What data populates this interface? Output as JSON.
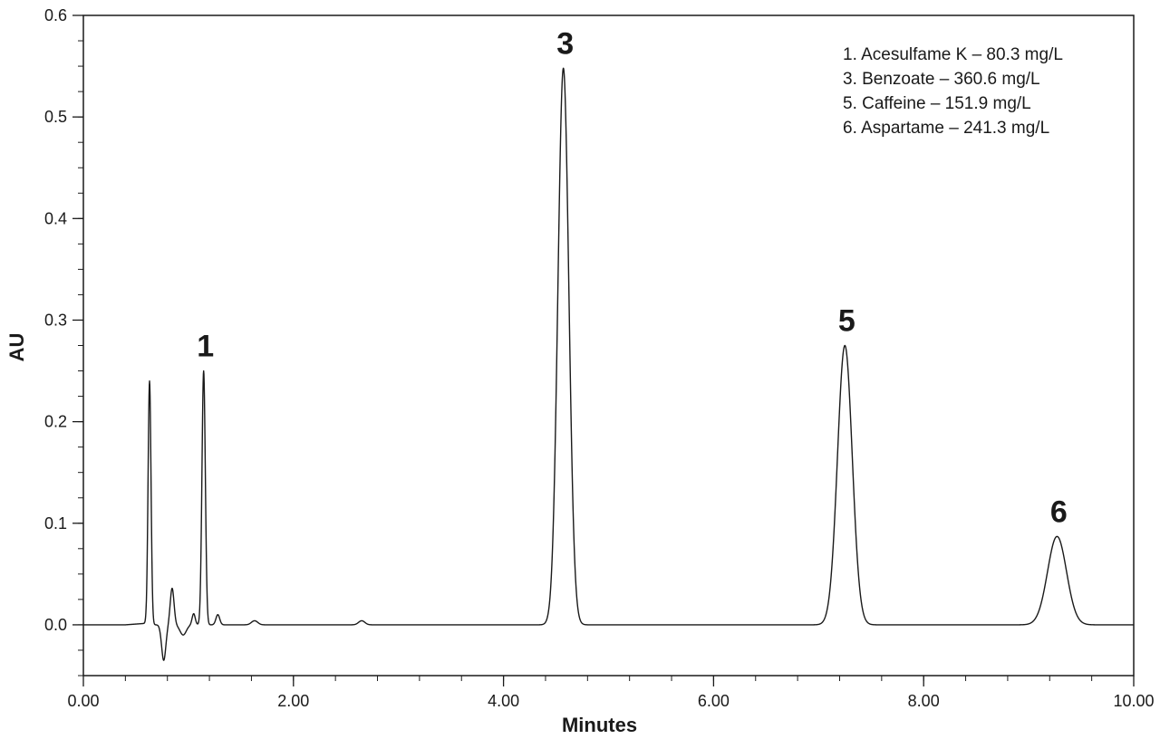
{
  "chart_data": {
    "type": "line",
    "xlabel": "Minutes",
    "ylabel": "AU",
    "xlim": [
      0.0,
      10.0
    ],
    "ylim": [
      -0.05,
      0.6
    ],
    "x_ticks": [
      0,
      2,
      4,
      6,
      8,
      10
    ],
    "x_tick_labels": [
      "0.00",
      "2.00",
      "4.00",
      "6.00",
      "8.00",
      "10.00"
    ],
    "x_minor_step": 0.4,
    "y_ticks": [
      0.0,
      0.1,
      0.2,
      0.3,
      0.4,
      0.5,
      0.6
    ],
    "y_tick_labels": [
      "0.0",
      "0.1",
      "0.2",
      "0.3",
      "0.4",
      "0.5",
      "0.6"
    ],
    "y_minor_step": 0.025,
    "grid": false,
    "line_color": "#1a1a1a",
    "peaks": [
      {
        "t": 0.63,
        "h": 0.24,
        "w": 0.014,
        "label": ""
      },
      {
        "t": 0.845,
        "h": 0.036,
        "w": 0.018,
        "label": ""
      },
      {
        "t": 1.05,
        "h": 0.011,
        "w": 0.015,
        "label": ""
      },
      {
        "t": 1.145,
        "h": 0.25,
        "w": 0.016,
        "label": "1"
      },
      {
        "t": 1.28,
        "h": 0.01,
        "w": 0.018,
        "label": ""
      },
      {
        "t": 1.63,
        "h": 0.004,
        "w": 0.03,
        "label": ""
      },
      {
        "t": 2.65,
        "h": 0.004,
        "w": 0.03,
        "label": ""
      },
      {
        "t": 4.57,
        "h": 0.548,
        "w": 0.052,
        "label": "3"
      },
      {
        "t": 7.25,
        "h": 0.275,
        "w": 0.07,
        "label": "5"
      },
      {
        "t": 9.27,
        "h": 0.087,
        "w": 0.09,
        "label": "6"
      }
    ],
    "dips": [
      {
        "t": 0.765,
        "h": -0.035,
        "w": 0.02
      },
      {
        "t": 0.95,
        "h": -0.01,
        "w": 0.03
      }
    ],
    "legend_position": "top-right",
    "legend": [
      "1. Acesulfame K – 80.3 mg/L",
      "3. Benzoate – 360.6 mg/L",
      "5. Caffeine – 151.9 mg/L",
      "6. Aspartame – 241.3 mg/L"
    ]
  }
}
